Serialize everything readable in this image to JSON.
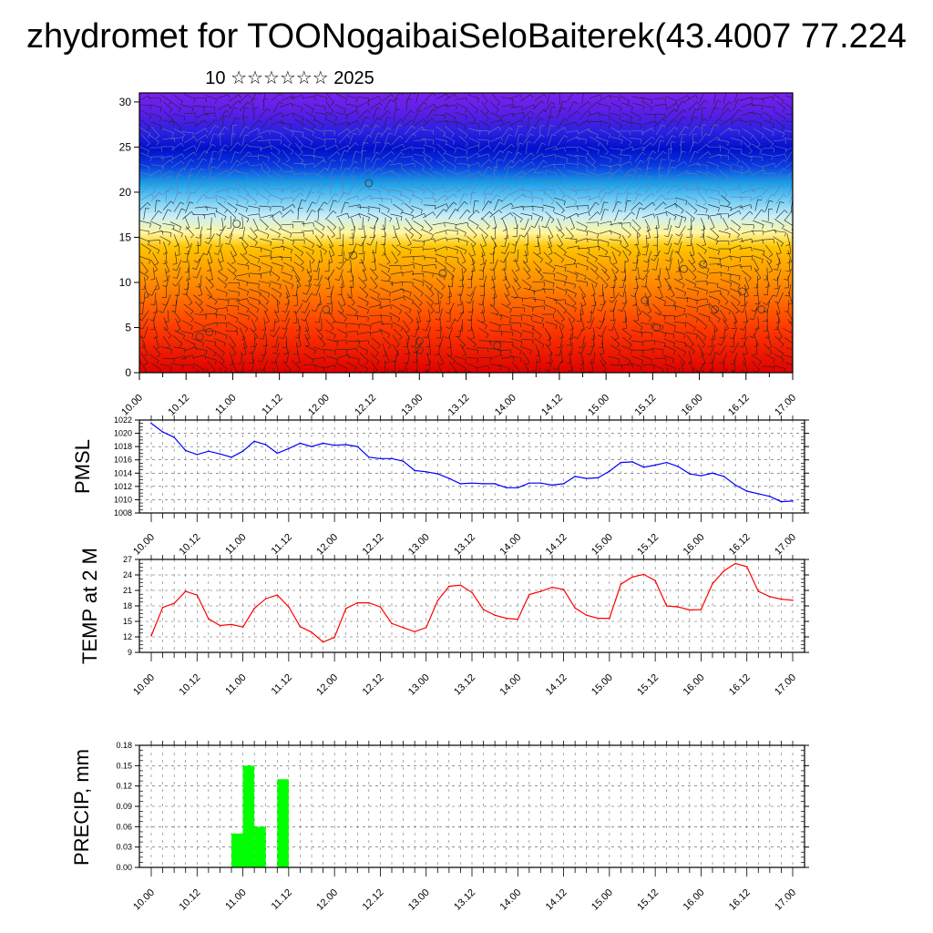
{
  "header": {
    "title": "zhydromet for TOONogaibaiSeloBaiterek(43.4007 77.224",
    "subtitle": "10 ☆☆☆☆☆☆ 2025"
  },
  "x_ticks": [
    "10.00",
    "10.12",
    "11.00",
    "11.12",
    "12.00",
    "12.12",
    "13.00",
    "13.12",
    "14.00",
    "14.12",
    "15.00",
    "15.12",
    "16.00",
    "16.12",
    "17.00"
  ],
  "colors": {
    "pmsl_line": "#0000ff",
    "temp_line": "#ff0000",
    "precip_bar": "#00ff00",
    "grid": "#555555"
  },
  "chart_data": [
    {
      "type": "heatmap",
      "name": "vertical-profile",
      "xlabel": "",
      "ylabel": "",
      "x_range_hours": [
        0,
        168
      ],
      "ylim": [
        0,
        31
      ],
      "y_ticks": [
        0,
        5,
        10,
        15,
        20,
        25,
        30
      ],
      "colormap": "rainbow (red at surface → yellow → cyan → blue → violet aloft)",
      "overlay": "wind barbs",
      "circles": [
        {
          "x_h": 15.5,
          "y": 4
        },
        {
          "x_h": 18,
          "y": 4.5
        },
        {
          "x_h": 25,
          "y": 16.5
        },
        {
          "x_h": 48,
          "y": 7
        },
        {
          "x_h": 55,
          "y": 13
        },
        {
          "x_h": 59,
          "y": 21
        },
        {
          "x_h": 72,
          "y": 2.5
        },
        {
          "x_h": 72,
          "y": 3.5
        },
        {
          "x_h": 78,
          "y": 11
        },
        {
          "x_h": 92,
          "y": 3
        },
        {
          "x_h": 130,
          "y": 8
        },
        {
          "x_h": 133,
          "y": 5
        },
        {
          "x_h": 140,
          "y": 11.5
        },
        {
          "x_h": 145,
          "y": 12
        },
        {
          "x_h": 148,
          "y": 7
        },
        {
          "x_h": 155,
          "y": 9
        },
        {
          "x_h": 160,
          "y": 7
        }
      ]
    },
    {
      "type": "line",
      "name": "pmsl",
      "ylabel": "PMSL",
      "ylim": [
        1008,
        1022
      ],
      "y_ticks": [
        1008,
        1010,
        1012,
        1014,
        1016,
        1018,
        1020,
        1022
      ],
      "step_hours": 3,
      "values": [
        1021.5,
        1020.2,
        1019.4,
        1017.4,
        1016.8,
        1017.3,
        1016.9,
        1016.4,
        1017.3,
        1018.8,
        1018.3,
        1017.0,
        1017.7,
        1018.5,
        1018.0,
        1018.5,
        1018.2,
        1018.3,
        1018.0,
        1016.4,
        1016.2,
        1016.2,
        1015.8,
        1014.4,
        1014.2,
        1013.9,
        1013.2,
        1012.4,
        1012.5,
        1012.4,
        1012.4,
        1011.8,
        1011.8,
        1012.5,
        1012.5,
        1012.2,
        1012.4,
        1013.5,
        1013.2,
        1013.3,
        1014.3,
        1015.6,
        1015.7,
        1014.9,
        1015.2,
        1015.6,
        1015.0,
        1013.9,
        1013.6,
        1014.0,
        1013.5,
        1012.2,
        1011.3,
        1010.9,
        1010.5,
        1009.7,
        1009.8
      ]
    },
    {
      "type": "line",
      "name": "temp",
      "ylabel": "TEMP at 2 M",
      "ylim": [
        9,
        27
      ],
      "y_ticks": [
        9,
        12,
        15,
        18,
        21,
        24,
        27
      ],
      "step_hours": 3,
      "values": [
        12.2,
        17.7,
        18.5,
        20.8,
        20.1,
        15.5,
        14.2,
        14.4,
        13.9,
        17.5,
        19.4,
        20.1,
        17.8,
        14.0,
        12.9,
        11.0,
        11.9,
        17.5,
        18.6,
        18.6,
        17.8,
        14.6,
        13.8,
        13.0,
        13.8,
        19.0,
        21.8,
        22.0,
        20.6,
        17.3,
        16.2,
        15.6,
        15.4,
        20.2,
        20.8,
        21.6,
        21.2,
        17.6,
        16.2,
        15.6,
        15.6,
        22.2,
        23.6,
        24.1,
        22.9,
        18.0,
        17.8,
        17.2,
        17.3,
        22.3,
        24.8,
        26.2,
        25.6,
        20.8,
        19.8,
        19.3,
        19.1
      ]
    },
    {
      "type": "bar",
      "name": "precip",
      "ylabel": "PRECIP, mm",
      "ylim": [
        0,
        0.18
      ],
      "y_ticks": [
        "0.00",
        "0.03",
        "0.06",
        "0.09",
        "0.12",
        "0.15",
        "0.18"
      ],
      "bars": [
        {
          "start_h": 21,
          "end_h": 24,
          "value": 0.05
        },
        {
          "start_h": 24,
          "end_h": 27,
          "value": 0.15
        },
        {
          "start_h": 27,
          "end_h": 30,
          "value": 0.06
        },
        {
          "start_h": 33,
          "end_h": 36,
          "value": 0.13
        }
      ]
    }
  ]
}
